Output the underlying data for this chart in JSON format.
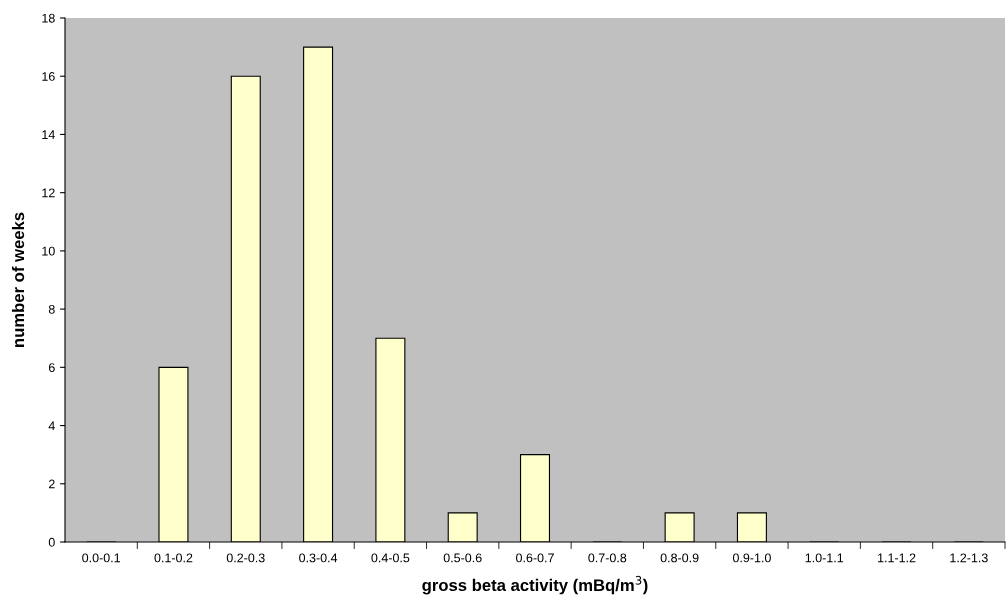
{
  "chart_data": {
    "type": "bar",
    "xlabel": "gross beta activity (mBq/m$^{3}$)",
    "ylabel": "number of weeks",
    "categories": [
      "0.0-0.1",
      "0.1-0.2",
      "0.2-0.3",
      "0.3-0.4",
      "0.4-0.5",
      "0.5-0.6",
      "0.6-0.7",
      "0.7-0.8",
      "0.8-0.9",
      "0.9-1.0",
      "1.0-1.1",
      "1.1-1.2",
      "1.2-1.3"
    ],
    "values": [
      0,
      6,
      16,
      17,
      7,
      1,
      3,
      0,
      1,
      1,
      0,
      0,
      0
    ],
    "color": "#ffffcc",
    "ylim": [
      0,
      18
    ],
    "yticks": [
      0,
      2,
      4,
      6,
      8,
      10,
      12,
      14,
      16,
      18
    ],
    "grid": false,
    "legend": false
  }
}
